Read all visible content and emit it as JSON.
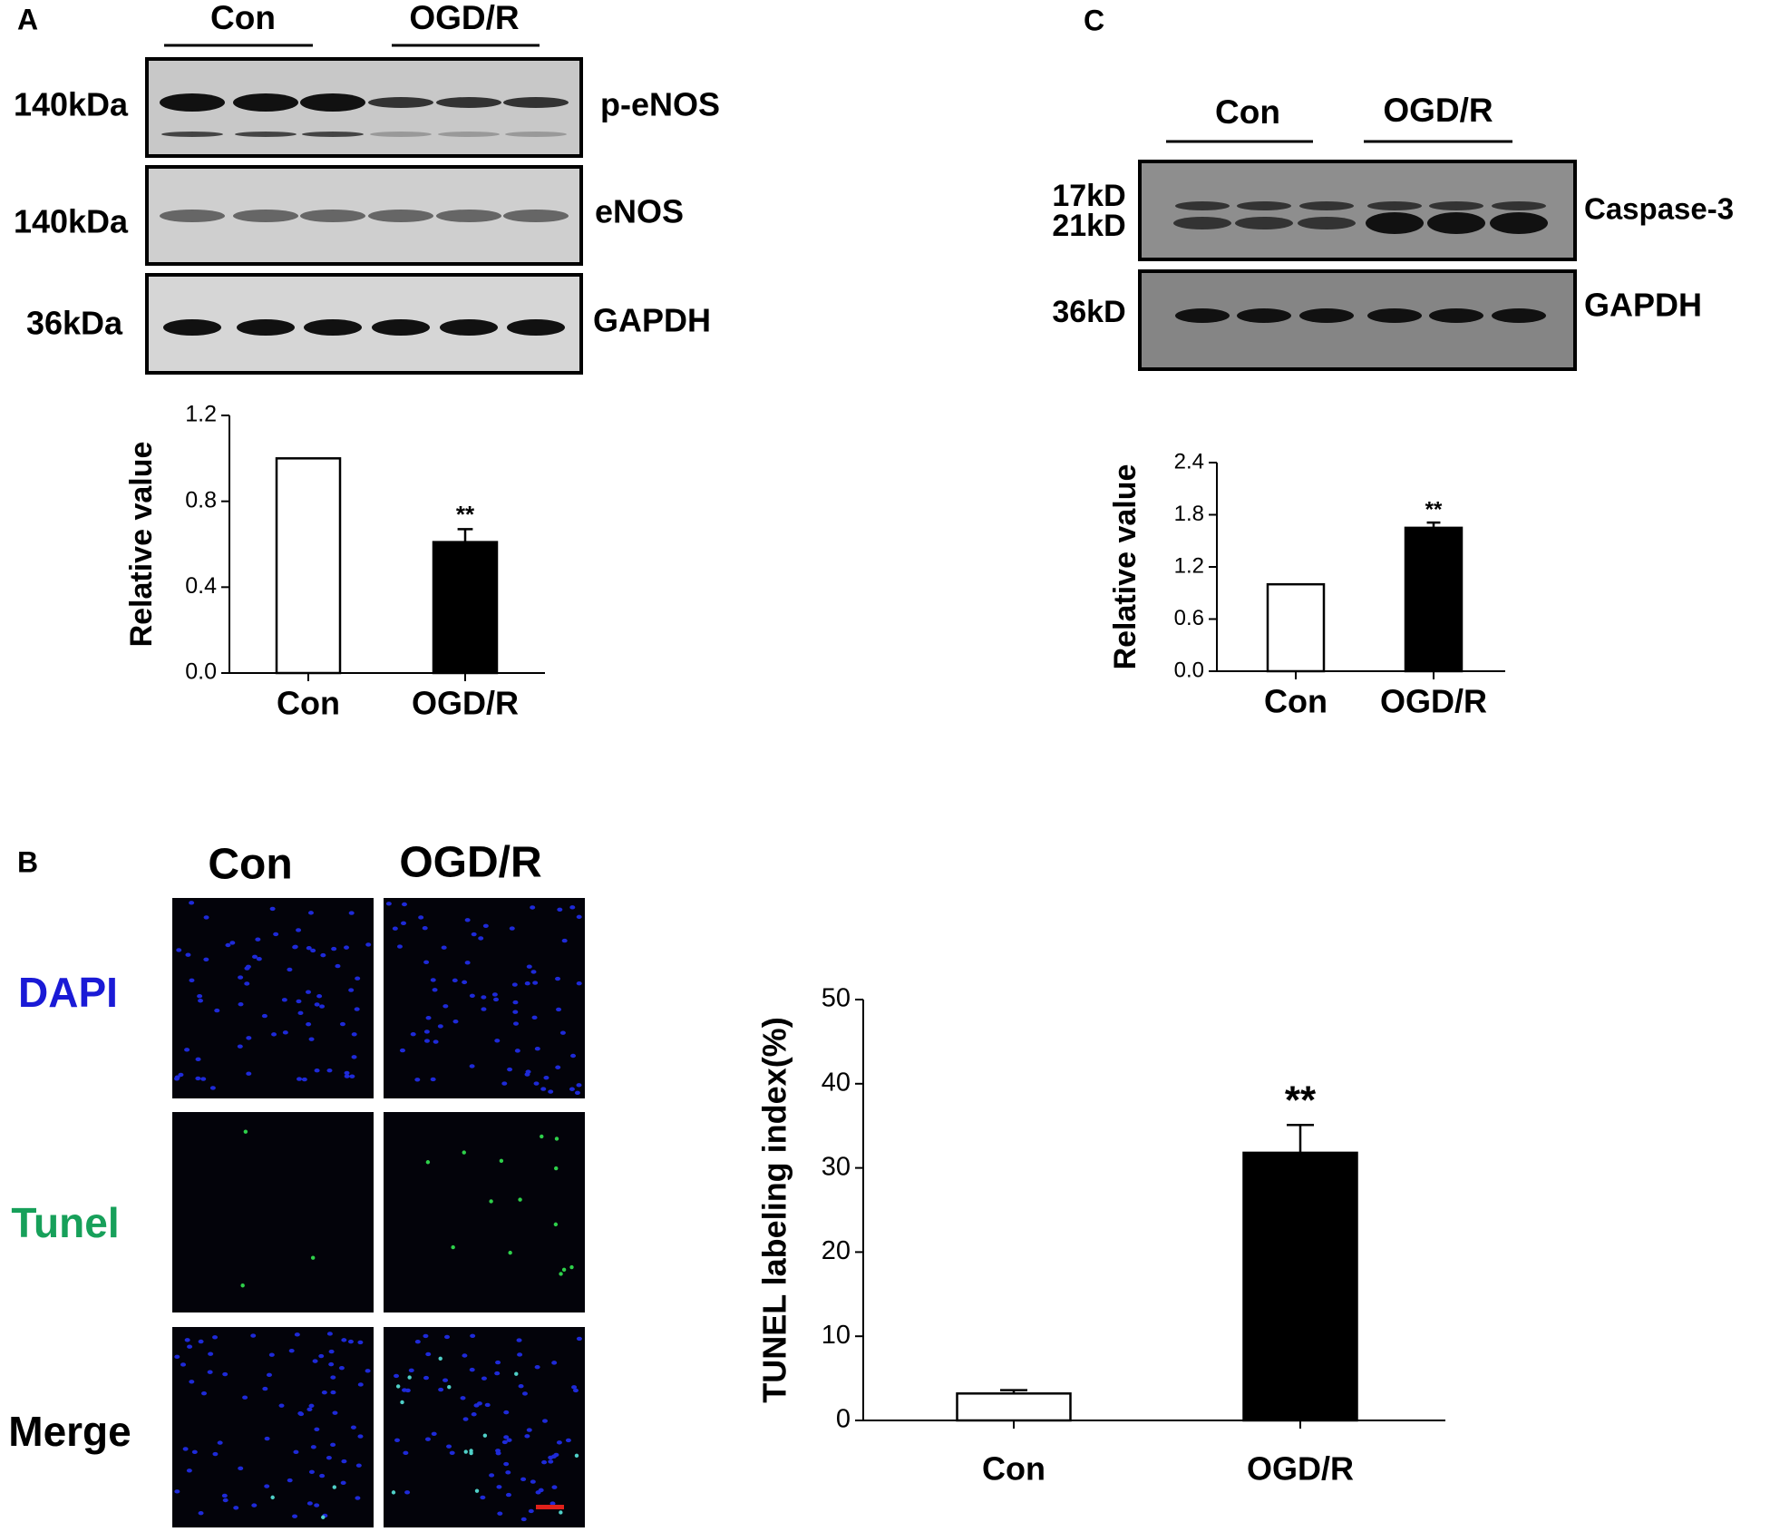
{
  "panels": {
    "a": "A",
    "b": "B",
    "c": "C"
  },
  "blot_a": {
    "groups": [
      "Con",
      "OGD/R"
    ],
    "rows": [
      {
        "size": "140kDa",
        "protein": "p-eNOS"
      },
      {
        "size": "140kDa",
        "protein": "eNOS"
      },
      {
        "size": "36kDa",
        "protein": "GAPDH"
      }
    ]
  },
  "blot_c": {
    "groups": [
      "Con",
      "OGD/R"
    ],
    "sizes": [
      "17kD",
      "21kD",
      "36kD"
    ],
    "proteins": [
      "Caspase-3",
      "GAPDH"
    ]
  },
  "microscopy": {
    "groups": [
      "Con",
      "OGD/R"
    ],
    "rows": [
      "DAPI",
      "Tunel",
      "Merge"
    ]
  },
  "chart_data": [
    {
      "type": "bar",
      "y_label": "Relative value",
      "categories": [
        "Con",
        "OGD/R"
      ],
      "values": [
        1.0,
        0.61
      ],
      "errors": [
        null,
        0.06
      ],
      "colors": [
        "#ffffff",
        "#000000"
      ],
      "annotation": "**",
      "ylim": [
        0,
        1.2
      ],
      "yticks": [
        {
          "value": 0,
          "label": "0.0"
        },
        0.4,
        0.8,
        1.2
      ]
    },
    {
      "type": "bar",
      "y_label": "Relative value",
      "categories": [
        "Con",
        "OGD/R"
      ],
      "values": [
        1.0,
        1.65
      ],
      "errors": [
        null,
        0.06
      ],
      "colors": [
        "#ffffff",
        "#000000"
      ],
      "annotation": "**",
      "ylim": [
        0,
        2.4
      ],
      "yticks": [
        {
          "value": 0,
          "label": "0.0"
        },
        0.6,
        1.2,
        1.8,
        2.4
      ]
    },
    {
      "type": "bar",
      "y_label": "TUNEL labeling index(%)",
      "categories": [
        "Con",
        "OGD/R"
      ],
      "values": [
        3.2,
        31.8
      ],
      "errors": [
        0.4,
        3.3
      ],
      "colors": [
        "#ffffff",
        "#000000"
      ],
      "annotation": "**",
      "ylim": [
        0,
        50
      ],
      "yticks": [
        0,
        10,
        20,
        30,
        40,
        50
      ]
    }
  ]
}
